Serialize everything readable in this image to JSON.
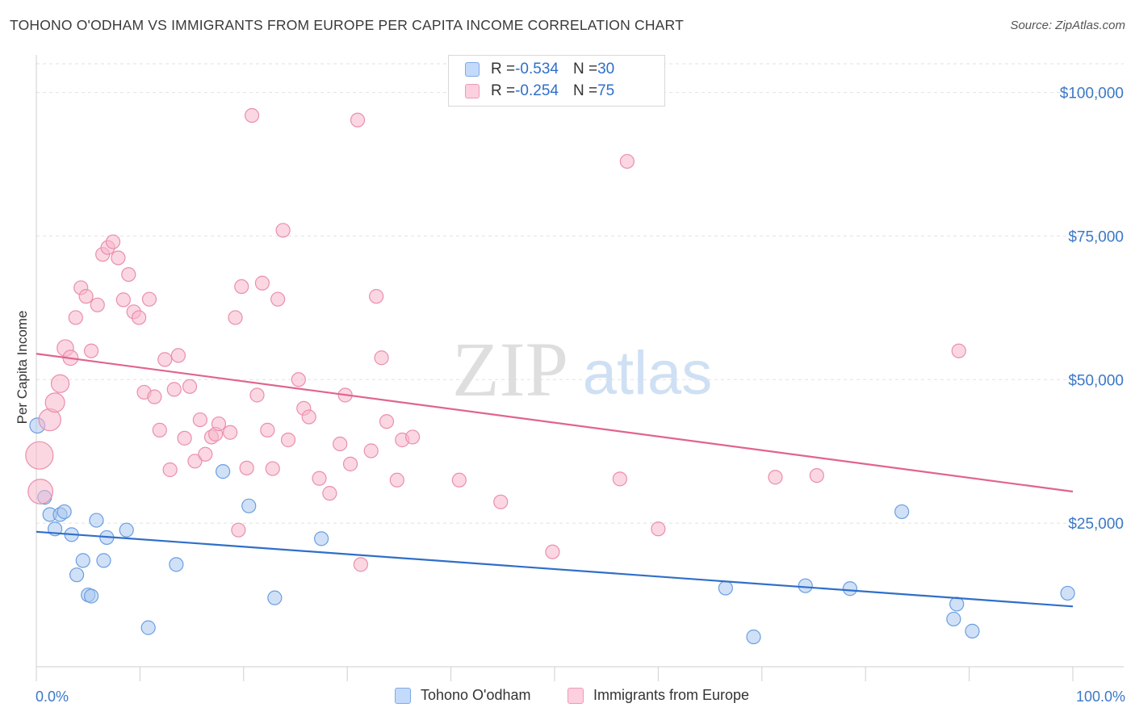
{
  "title": "TOHONO O'ODHAM VS IMMIGRANTS FROM EUROPE PER CAPITA INCOME CORRELATION CHART",
  "source": "Source: ZipAtlas.com",
  "watermark": {
    "zip": "ZIP",
    "atlas": "atlas"
  },
  "colors": {
    "blue_fill": "#a9c8f0",
    "blue_stroke": "#6b9ee0",
    "blue_line": "#2f6fc9",
    "pink_fill": "#f7b6ca",
    "pink_stroke": "#ea8fab",
    "pink_line": "#e0648f",
    "axis_text": "#3b78c8",
    "grid": "#e2e2e2"
  },
  "legend": {
    "rows": [
      {
        "r_label": "R = ",
        "r_value": "-0.534",
        "n_label": "N = ",
        "n_value": "30"
      },
      {
        "r_label": "R = ",
        "r_value": "-0.254",
        "n_label": "N = ",
        "n_value": "75"
      }
    ]
  },
  "chart_data": {
    "type": "scatter",
    "title": "TOHONO O'ODHAM VS IMMIGRANTS FROM EUROPE PER CAPITA INCOME CORRELATION CHART",
    "xlabel": "",
    "ylabel": "Per Capita Income",
    "xlim": [
      0,
      100
    ],
    "ylim": [
      0,
      105000
    ],
    "x_tick_labels": [
      "0.0%",
      "100.0%"
    ],
    "y_ticks": [
      25000,
      50000,
      75000,
      100000
    ],
    "y_tick_labels": [
      "$25,000",
      "$50,000",
      "$75,000",
      "$100,000"
    ],
    "grid": true,
    "series": [
      {
        "name": "Tohono O'odham",
        "color_key": "blue",
        "trend": {
          "x": [
            0,
            100
          ],
          "y": [
            23500,
            10500
          ]
        },
        "points": [
          {
            "x": 0.1,
            "y": 42000,
            "s": 1.1
          },
          {
            "x": 0.8,
            "y": 29500,
            "s": 1
          },
          {
            "x": 1.3,
            "y": 26500,
            "s": 1
          },
          {
            "x": 1.8,
            "y": 24000,
            "s": 1
          },
          {
            "x": 2.3,
            "y": 26500,
            "s": 1
          },
          {
            "x": 2.7,
            "y": 27000,
            "s": 1
          },
          {
            "x": 3.4,
            "y": 23000,
            "s": 1
          },
          {
            "x": 3.9,
            "y": 16000,
            "s": 1
          },
          {
            "x": 4.5,
            "y": 18500,
            "s": 1
          },
          {
            "x": 5.0,
            "y": 12500,
            "s": 1
          },
          {
            "x": 5.3,
            "y": 12300,
            "s": 1
          },
          {
            "x": 5.8,
            "y": 25500,
            "s": 1
          },
          {
            "x": 6.5,
            "y": 18500,
            "s": 1
          },
          {
            "x": 6.8,
            "y": 22500,
            "s": 1
          },
          {
            "x": 8.7,
            "y": 23800,
            "s": 1
          },
          {
            "x": 10.8,
            "y": 6800,
            "s": 1
          },
          {
            "x": 13.5,
            "y": 17800,
            "s": 1
          },
          {
            "x": 18.0,
            "y": 34000,
            "s": 1
          },
          {
            "x": 20.5,
            "y": 28000,
            "s": 1
          },
          {
            "x": 23.0,
            "y": 12000,
            "s": 1
          },
          {
            "x": 27.5,
            "y": 22300,
            "s": 1
          },
          {
            "x": 66.5,
            "y": 13700,
            "s": 1
          },
          {
            "x": 69.2,
            "y": 5200,
            "s": 1
          },
          {
            "x": 74.2,
            "y": 14100,
            "s": 1
          },
          {
            "x": 78.5,
            "y": 13600,
            "s": 1
          },
          {
            "x": 83.5,
            "y": 27000,
            "s": 1
          },
          {
            "x": 88.5,
            "y": 8300,
            "s": 1
          },
          {
            "x": 88.8,
            "y": 10900,
            "s": 1
          },
          {
            "x": 90.3,
            "y": 6200,
            "s": 1
          },
          {
            "x": 99.5,
            "y": 12800,
            "s": 1
          }
        ]
      },
      {
        "name": "Immigrants from Europe",
        "color_key": "pink",
        "trend": {
          "x": [
            0,
            100
          ],
          "y": [
            54500,
            30500
          ]
        },
        "points": [
          {
            "x": 0.3,
            "y": 36800,
            "s": 2.0
          },
          {
            "x": 0.4,
            "y": 30500,
            "s": 1.8
          },
          {
            "x": 1.3,
            "y": 43000,
            "s": 1.6
          },
          {
            "x": 1.8,
            "y": 46000,
            "s": 1.4
          },
          {
            "x": 2.3,
            "y": 49300,
            "s": 1.3
          },
          {
            "x": 2.8,
            "y": 55500,
            "s": 1.2
          },
          {
            "x": 3.3,
            "y": 53800,
            "s": 1.1
          },
          {
            "x": 3.8,
            "y": 60800,
            "s": 1
          },
          {
            "x": 4.3,
            "y": 66000,
            "s": 1
          },
          {
            "x": 4.8,
            "y": 64500,
            "s": 1
          },
          {
            "x": 5.3,
            "y": 55000,
            "s": 1
          },
          {
            "x": 5.9,
            "y": 63000,
            "s": 1
          },
          {
            "x": 6.4,
            "y": 71800,
            "s": 1
          },
          {
            "x": 6.9,
            "y": 73000,
            "s": 1
          },
          {
            "x": 7.4,
            "y": 74000,
            "s": 1
          },
          {
            "x": 7.9,
            "y": 71200,
            "s": 1
          },
          {
            "x": 8.4,
            "y": 63900,
            "s": 1
          },
          {
            "x": 8.9,
            "y": 68300,
            "s": 1
          },
          {
            "x": 9.4,
            "y": 61800,
            "s": 1
          },
          {
            "x": 9.9,
            "y": 60800,
            "s": 1
          },
          {
            "x": 10.4,
            "y": 47800,
            "s": 1
          },
          {
            "x": 10.9,
            "y": 64000,
            "s": 1
          },
          {
            "x": 11.4,
            "y": 47000,
            "s": 1
          },
          {
            "x": 11.9,
            "y": 41200,
            "s": 1
          },
          {
            "x": 12.4,
            "y": 53500,
            "s": 1
          },
          {
            "x": 12.9,
            "y": 34300,
            "s": 1
          },
          {
            "x": 13.3,
            "y": 48300,
            "s": 1
          },
          {
            "x": 13.7,
            "y": 54200,
            "s": 1
          },
          {
            "x": 14.3,
            "y": 39800,
            "s": 1
          },
          {
            "x": 14.8,
            "y": 48800,
            "s": 1
          },
          {
            "x": 15.3,
            "y": 35800,
            "s": 1
          },
          {
            "x": 15.8,
            "y": 43000,
            "s": 1
          },
          {
            "x": 16.3,
            "y": 37000,
            "s": 1
          },
          {
            "x": 16.9,
            "y": 40000,
            "s": 1
          },
          {
            "x": 17.3,
            "y": 40500,
            "s": 1
          },
          {
            "x": 17.6,
            "y": 42300,
            "s": 1
          },
          {
            "x": 18.7,
            "y": 40800,
            "s": 1
          },
          {
            "x": 19.2,
            "y": 60800,
            "s": 1
          },
          {
            "x": 19.5,
            "y": 23800,
            "s": 1
          },
          {
            "x": 19.8,
            "y": 66200,
            "s": 1
          },
          {
            "x": 20.3,
            "y": 34600,
            "s": 1
          },
          {
            "x": 20.8,
            "y": 96000,
            "s": 1
          },
          {
            "x": 21.3,
            "y": 47300,
            "s": 1
          },
          {
            "x": 21.8,
            "y": 66800,
            "s": 1
          },
          {
            "x": 22.3,
            "y": 41200,
            "s": 1
          },
          {
            "x": 22.8,
            "y": 34500,
            "s": 1
          },
          {
            "x": 23.3,
            "y": 64000,
            "s": 1
          },
          {
            "x": 23.8,
            "y": 76000,
            "s": 1
          },
          {
            "x": 24.3,
            "y": 39500,
            "s": 1
          },
          {
            "x": 25.3,
            "y": 50000,
            "s": 1
          },
          {
            "x": 25.8,
            "y": 45000,
            "s": 1
          },
          {
            "x": 26.3,
            "y": 43500,
            "s": 1
          },
          {
            "x": 27.3,
            "y": 32800,
            "s": 1
          },
          {
            "x": 28.3,
            "y": 30200,
            "s": 1
          },
          {
            "x": 29.3,
            "y": 38800,
            "s": 1
          },
          {
            "x": 29.8,
            "y": 47300,
            "s": 1
          },
          {
            "x": 30.3,
            "y": 35300,
            "s": 1
          },
          {
            "x": 31.0,
            "y": 95200,
            "s": 1
          },
          {
            "x": 31.3,
            "y": 17800,
            "s": 1
          },
          {
            "x": 32.3,
            "y": 37600,
            "s": 1
          },
          {
            "x": 32.8,
            "y": 64500,
            "s": 1
          },
          {
            "x": 33.3,
            "y": 53800,
            "s": 1
          },
          {
            "x": 33.8,
            "y": 42700,
            "s": 1
          },
          {
            "x": 34.8,
            "y": 32500,
            "s": 1
          },
          {
            "x": 35.3,
            "y": 39500,
            "s": 1
          },
          {
            "x": 36.3,
            "y": 40000,
            "s": 1
          },
          {
            "x": 40.8,
            "y": 32500,
            "s": 1
          },
          {
            "x": 44.8,
            "y": 28700,
            "s": 1
          },
          {
            "x": 49.8,
            "y": 20000,
            "s": 1
          },
          {
            "x": 56.3,
            "y": 32700,
            "s": 1
          },
          {
            "x": 60.0,
            "y": 24000,
            "s": 1
          },
          {
            "x": 71.3,
            "y": 33000,
            "s": 1
          },
          {
            "x": 75.3,
            "y": 33300,
            "s": 1
          },
          {
            "x": 89.0,
            "y": 55000,
            "s": 1
          },
          {
            "x": 57.0,
            "y": 88000,
            "s": 1
          }
        ]
      }
    ]
  }
}
